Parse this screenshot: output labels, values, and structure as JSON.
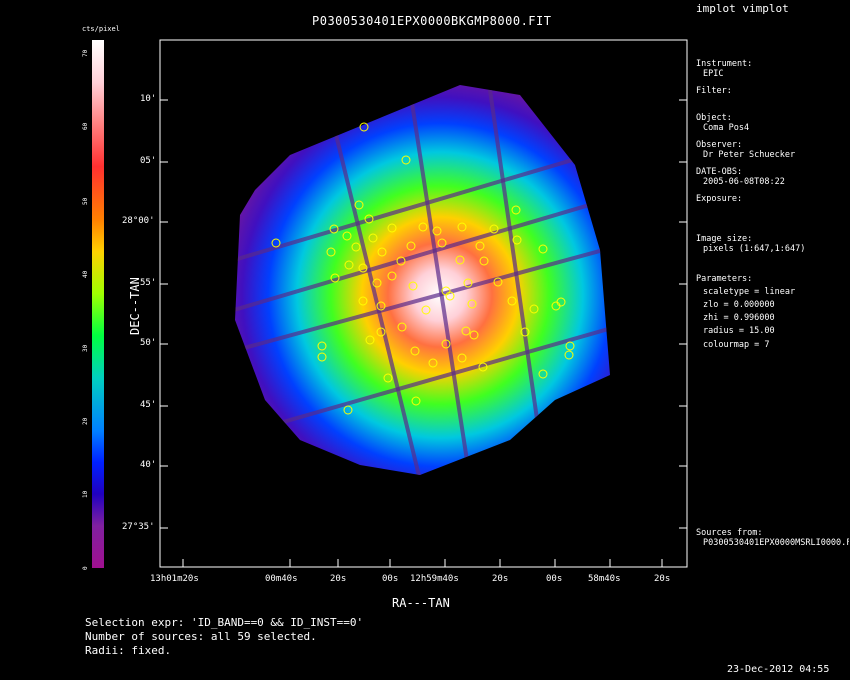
{
  "header": {
    "window_title": "implot vimplot",
    "file_title": "P0300530401EPX0000BKGMP8000.FIT"
  },
  "colorbar": {
    "unit_label": "cts/pixel",
    "tick_labels": [
      "70",
      "60",
      "50",
      "40",
      "30",
      "20",
      "10",
      "0"
    ]
  },
  "axes": {
    "ylabel": "DEC--TAN",
    "xlabel": "RA---TAN",
    "y_ticks": [
      "10'",
      "05'",
      "28°00'",
      "55'",
      "50'",
      "45'",
      "40'",
      "27°35'"
    ],
    "x_ticks": [
      "13h01m20s",
      "00m40s",
      "20s",
      "00s",
      "12h59m40s",
      "20s",
      "00s",
      "58m40s",
      "20s"
    ]
  },
  "info_panel": {
    "instrument_label": "Instrument:",
    "instrument_value": "EPIC",
    "filter_label": "Filter:",
    "object_label": "Object:",
    "object_value": "Coma Pos4",
    "observer_label": "Observer:",
    "observer_value": "Dr Peter Schuecker",
    "date_label": "DATE-OBS:",
    "date_value": "2005-06-08T08:22",
    "exposure_label": "Exposure:",
    "image_size_label": "Image size:",
    "image_size_value": "pixels (1:647,1:647)",
    "parameters_label": "Parameters:",
    "params": [
      "scaletype = linear",
      "zlo = 0.000000",
      "zhi = 0.996000",
      "radius = 15.00",
      "colourmap = 7"
    ],
    "sources_label": "Sources from:",
    "sources_value": "P0300530401EPX0000MSRLI0000.F"
  },
  "footer": {
    "selection_expr": "Selection expr: 'ID_BAND==0 && ID_INST==0'",
    "num_sources": "Number of sources: all 59 selected.",
    "radii": "Radii: fixed.",
    "timestamp": "23-Dec-2012 04:55"
  },
  "colors": {
    "background": "#000000",
    "outer_region": "#8a1a8a",
    "core": "#ffffff",
    "source_marker": "#ffff00"
  }
}
